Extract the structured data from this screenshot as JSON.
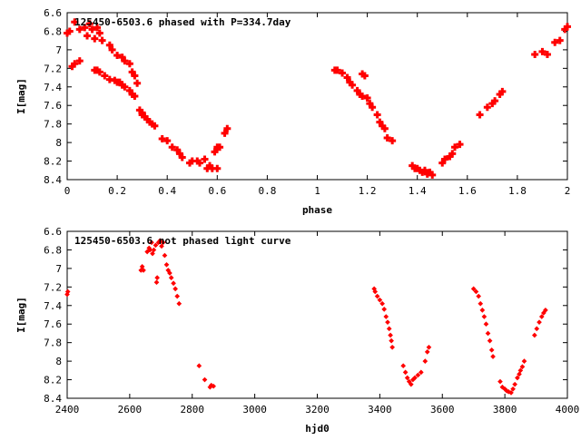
{
  "chart_data": [
    {
      "type": "scatter",
      "title": "125450-6503.6 phased with P=334.7day",
      "xlabel": "phase",
      "ylabel": "I[mag]",
      "xlim": [
        0,
        2
      ],
      "ylim": [
        8.4,
        6.6
      ],
      "y_inverted": true,
      "xticks": [
        "0",
        "0.2",
        "0.4",
        "0.6",
        "0.8",
        "1",
        "1.2",
        "1.4",
        "1.6",
        "1.8",
        "2"
      ],
      "yticks": [
        "6.6",
        "6.8",
        "7",
        "7.2",
        "7.4",
        "7.6",
        "7.8",
        "8",
        "8.2",
        "8.4"
      ],
      "grid": false,
      "marker_color": "#ff0000",
      "series": [
        {
          "points": [
            [
              0.0,
              6.82
            ],
            [
              0.01,
              6.8
            ],
            [
              0.02,
              7.18
            ],
            [
              0.03,
              7.15
            ],
            [
              0.03,
              6.7
            ],
            [
              0.05,
              7.12
            ],
            [
              0.05,
              6.78
            ],
            [
              0.07,
              6.76
            ],
            [
              0.08,
              6.85
            ],
            [
              0.09,
              6.72
            ],
            [
              0.1,
              6.78
            ],
            [
              0.11,
              6.88
            ],
            [
              0.11,
              7.22
            ],
            [
              0.12,
              7.22
            ],
            [
              0.12,
              6.76
            ],
            [
              0.13,
              6.82
            ],
            [
              0.13,
              7.24
            ],
            [
              0.14,
              6.9
            ],
            [
              0.15,
              7.28
            ],
            [
              0.17,
              7.32
            ],
            [
              0.17,
              6.95
            ],
            [
              0.18,
              7.0
            ],
            [
              0.19,
              7.33
            ],
            [
              0.2,
              7.35
            ],
            [
              0.2,
              7.06
            ],
            [
              0.21,
              7.35
            ],
            [
              0.22,
              7.08
            ],
            [
              0.22,
              7.38
            ],
            [
              0.23,
              7.12
            ],
            [
              0.23,
              7.4
            ],
            [
              0.25,
              7.15
            ],
            [
              0.25,
              7.44
            ],
            [
              0.26,
              7.48
            ],
            [
              0.26,
              7.24
            ],
            [
              0.27,
              7.28
            ],
            [
              0.27,
              7.5
            ],
            [
              0.28,
              7.36
            ],
            [
              0.29,
              7.65
            ],
            [
              0.3,
              7.68
            ],
            [
              0.3,
              7.7
            ],
            [
              0.31,
              7.72
            ],
            [
              0.32,
              7.75
            ],
            [
              0.33,
              7.78
            ],
            [
              0.34,
              7.8
            ],
            [
              0.35,
              7.82
            ],
            [
              0.38,
              7.96
            ],
            [
              0.4,
              7.98
            ],
            [
              0.42,
              8.05
            ],
            [
              0.44,
              8.08
            ],
            [
              0.45,
              8.12
            ],
            [
              0.46,
              8.16
            ],
            [
              0.49,
              8.22
            ],
            [
              0.5,
              8.2
            ],
            [
              0.52,
              8.2
            ],
            [
              0.53,
              8.22
            ],
            [
              0.55,
              8.18
            ],
            [
              0.56,
              8.28
            ],
            [
              0.57,
              8.25
            ],
            [
              0.58,
              8.28
            ],
            [
              0.59,
              8.1
            ],
            [
              0.6,
              8.05
            ],
            [
              0.6,
              8.28
            ],
            [
              0.61,
              8.05
            ],
            [
              0.63,
              7.9
            ],
            [
              0.64,
              7.85
            ],
            [
              1.07,
              7.22
            ],
            [
              1.08,
              7.22
            ],
            [
              1.1,
              7.25
            ],
            [
              1.12,
              7.3
            ],
            [
              1.13,
              7.35
            ],
            [
              1.14,
              7.38
            ],
            [
              1.16,
              7.44
            ],
            [
              1.17,
              7.48
            ],
            [
              1.18,
              7.26
            ],
            [
              1.18,
              7.5
            ],
            [
              1.19,
              7.28
            ],
            [
              1.2,
              7.52
            ],
            [
              1.21,
              7.58
            ],
            [
              1.22,
              7.62
            ],
            [
              1.24,
              7.7
            ],
            [
              1.25,
              7.78
            ],
            [
              1.26,
              7.82
            ],
            [
              1.27,
              7.85
            ],
            [
              1.28,
              7.95
            ],
            [
              1.3,
              7.98
            ],
            [
              1.38,
              8.25
            ],
            [
              1.39,
              8.28
            ],
            [
              1.4,
              8.28
            ],
            [
              1.41,
              8.3
            ],
            [
              1.42,
              8.32
            ],
            [
              1.43,
              8.3
            ],
            [
              1.44,
              8.34
            ],
            [
              1.45,
              8.32
            ],
            [
              1.46,
              8.35
            ],
            [
              1.5,
              8.22
            ],
            [
              1.51,
              8.18
            ],
            [
              1.53,
              8.15
            ],
            [
              1.54,
              8.12
            ],
            [
              1.55,
              8.05
            ],
            [
              1.57,
              8.02
            ],
            [
              1.65,
              7.7
            ],
            [
              1.68,
              7.62
            ],
            [
              1.7,
              7.58
            ],
            [
              1.71,
              7.55
            ],
            [
              1.73,
              7.48
            ],
            [
              1.74,
              7.45
            ],
            [
              1.87,
              7.05
            ],
            [
              1.9,
              7.02
            ],
            [
              1.92,
              7.05
            ],
            [
              1.95,
              6.92
            ],
            [
              1.97,
              6.9
            ],
            [
              1.99,
              6.78
            ],
            [
              2.0,
              6.75
            ]
          ]
        }
      ]
    },
    {
      "type": "scatter",
      "title": "125450-6503.6 not phased light curve",
      "xlabel": "hjd0",
      "ylabel": "I[mag]",
      "xlim": [
        2400,
        4000
      ],
      "ylim": [
        8.4,
        6.6
      ],
      "y_inverted": true,
      "xticks": [
        "2400",
        "2600",
        "2800",
        "3000",
        "3200",
        "3400",
        "3600",
        "3800",
        "4000"
      ],
      "yticks": [
        "6.6",
        "6.8",
        "7",
        "7.2",
        "7.4",
        "7.6",
        "7.8",
        "8",
        "8.2",
        "8.4"
      ],
      "grid": false,
      "marker_color": "#ff0000",
      "series": [
        {
          "points": [
            [
              2400,
              7.28
            ],
            [
              2402,
              7.25
            ],
            [
              2636,
              7.02
            ],
            [
              2640,
              6.98
            ],
            [
              2644,
              7.02
            ],
            [
              2656,
              6.82
            ],
            [
              2662,
              6.78
            ],
            [
              2665,
              6.8
            ],
            [
              2670,
              6.72
            ],
            [
              2673,
              6.84
            ],
            [
              2677,
              6.8
            ],
            [
              2683,
              6.75
            ],
            [
              2686,
              7.15
            ],
            [
              2688,
              7.1
            ],
            [
              2692,
              6.72
            ],
            [
              2697,
              6.7
            ],
            [
              2702,
              6.76
            ],
            [
              2707,
              6.72
            ],
            [
              2712,
              6.86
            ],
            [
              2718,
              6.96
            ],
            [
              2723,
              7.02
            ],
            [
              2728,
              7.05
            ],
            [
              2733,
              7.1
            ],
            [
              2740,
              7.16
            ],
            [
              2746,
              7.22
            ],
            [
              2752,
              7.3
            ],
            [
              2758,
              7.38
            ],
            [
              2822,
              8.05
            ],
            [
              2840,
              8.2
            ],
            [
              2857,
              8.28
            ],
            [
              2861,
              8.26
            ],
            [
              2868,
              8.27
            ],
            [
              3382,
              7.22
            ],
            [
              3385,
              7.25
            ],
            [
              3392,
              7.3
            ],
            [
              3400,
              7.34
            ],
            [
              3408,
              7.38
            ],
            [
              3414,
              7.44
            ],
            [
              3420,
              7.52
            ],
            [
              3425,
              7.58
            ],
            [
              3430,
              7.65
            ],
            [
              3434,
              7.72
            ],
            [
              3437,
              7.78
            ],
            [
              3440,
              7.85
            ],
            [
              3475,
              8.05
            ],
            [
              3482,
              8.12
            ],
            [
              3488,
              8.18
            ],
            [
              3494,
              8.22
            ],
            [
              3500,
              8.25
            ],
            [
              3506,
              8.2
            ],
            [
              3512,
              8.18
            ],
            [
              3522,
              8.15
            ],
            [
              3532,
              8.12
            ],
            [
              3545,
              8.0
            ],
            [
              3552,
              7.9
            ],
            [
              3557,
              7.85
            ],
            [
              3700,
              7.22
            ],
            [
              3708,
              7.25
            ],
            [
              3716,
              7.3
            ],
            [
              3722,
              7.38
            ],
            [
              3728,
              7.45
            ],
            [
              3734,
              7.52
            ],
            [
              3740,
              7.6
            ],
            [
              3746,
              7.7
            ],
            [
              3752,
              7.78
            ],
            [
              3758,
              7.88
            ],
            [
              3762,
              7.95
            ],
            [
              3785,
              8.22
            ],
            [
              3792,
              8.28
            ],
            [
              3800,
              8.3
            ],
            [
              3806,
              8.32
            ],
            [
              3812,
              8.33
            ],
            [
              3820,
              8.34
            ],
            [
              3826,
              8.3
            ],
            [
              3832,
              8.25
            ],
            [
              3840,
              8.18
            ],
            [
              3846,
              8.14
            ],
            [
              3850,
              8.1
            ],
            [
              3856,
              8.06
            ],
            [
              3862,
              8.0
            ],
            [
              3895,
              7.72
            ],
            [
              3902,
              7.65
            ],
            [
              3910,
              7.58
            ],
            [
              3918,
              7.52
            ],
            [
              3924,
              7.48
            ],
            [
              3930,
              7.45
            ]
          ]
        }
      ]
    }
  ]
}
